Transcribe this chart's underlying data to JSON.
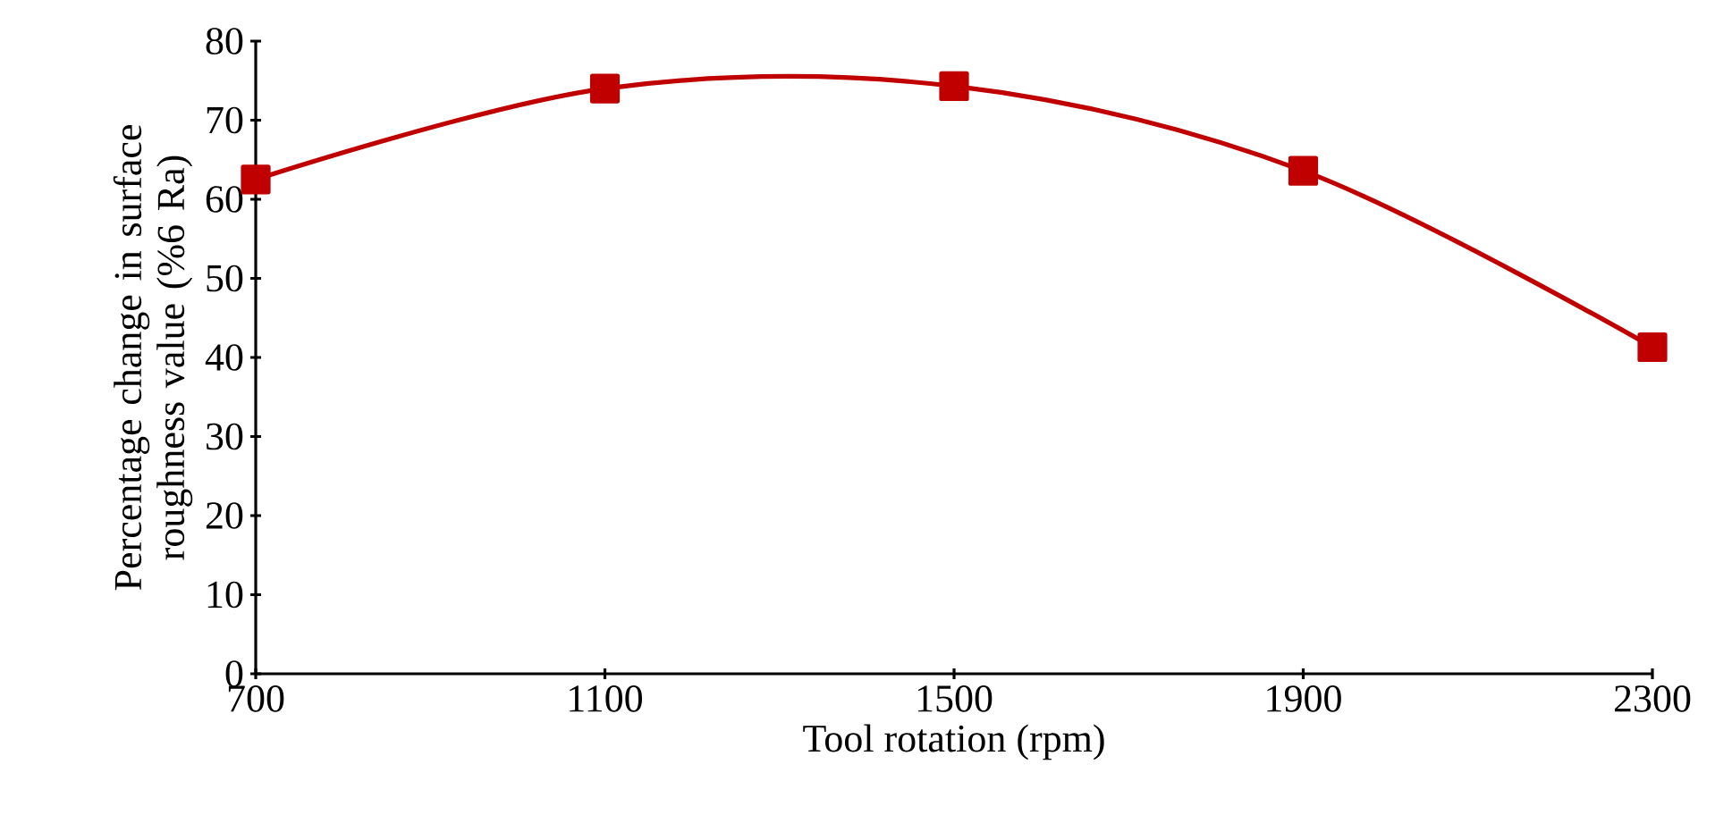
{
  "chart_data": {
    "type": "line",
    "xlabel": "Tool rotation (rpm)",
    "ylabel": "Percentage change in surface roughness value (%6 Ra)",
    "x": [
      700,
      1100,
      1500,
      1900,
      2300
    ],
    "series": [
      {
        "color": "#c00000",
        "values": [
          62.5,
          74.0,
          74.3,
          63.6,
          41.3
        ]
      }
    ],
    "xlim": [
      700,
      2300
    ],
    "xticks": [
      700,
      1100,
      1500,
      1900,
      2300
    ],
    "ylim": [
      0,
      80
    ],
    "yticks": [
      0,
      10,
      20,
      30,
      40,
      50,
      60,
      70,
      80
    ],
    "grid": false,
    "marker": "square",
    "line_style": "solid"
  }
}
